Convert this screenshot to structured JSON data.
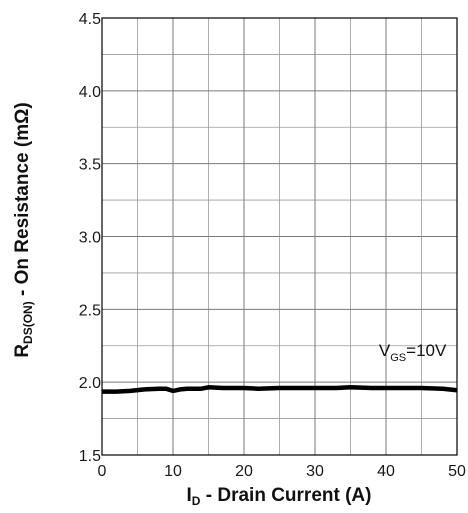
{
  "chart_data": {
    "type": "line",
    "title": "",
    "xlabel": {
      "prefix": "I",
      "subscript": "D",
      "text": " - Drain Current (A)"
    },
    "ylabel": {
      "prefix": "R",
      "subscript": "DS(ON)",
      "text": " - On Resistance (mΩ)"
    },
    "xlim": [
      0,
      50
    ],
    "ylim": [
      1.5,
      4.5
    ],
    "xticks": [
      0,
      10,
      20,
      30,
      40,
      50
    ],
    "xtick_labels": [
      "0",
      "10",
      "20",
      "30",
      "40",
      "50"
    ],
    "yticks": [
      1.5,
      2.0,
      2.5,
      3.0,
      3.5,
      4.0,
      4.5
    ],
    "ytick_labels": [
      "1.5",
      "2.0",
      "2.5",
      "3.0",
      "3.5",
      "4.0",
      "4.5"
    ],
    "x_minor_step": 5,
    "y_minor_step": 0.25,
    "grid": true,
    "legend": "none",
    "annotation": {
      "prefix": "V",
      "subscript": "GS",
      "text": "=10V",
      "at_x": 39,
      "at_y": 2.18
    },
    "series": [
      {
        "color": "#000000",
        "x": [
          0,
          2,
          4,
          6,
          8,
          9,
          10,
          11,
          12,
          14,
          15,
          17,
          20,
          22,
          25,
          28,
          30,
          33,
          35,
          38,
          40,
          43,
          45,
          48,
          50
        ],
        "y": [
          1.935,
          1.935,
          1.94,
          1.95,
          1.955,
          1.955,
          1.94,
          1.95,
          1.955,
          1.955,
          1.965,
          1.96,
          1.96,
          1.955,
          1.96,
          1.96,
          1.96,
          1.96,
          1.965,
          1.96,
          1.96,
          1.96,
          1.96,
          1.955,
          1.945
        ]
      }
    ]
  }
}
